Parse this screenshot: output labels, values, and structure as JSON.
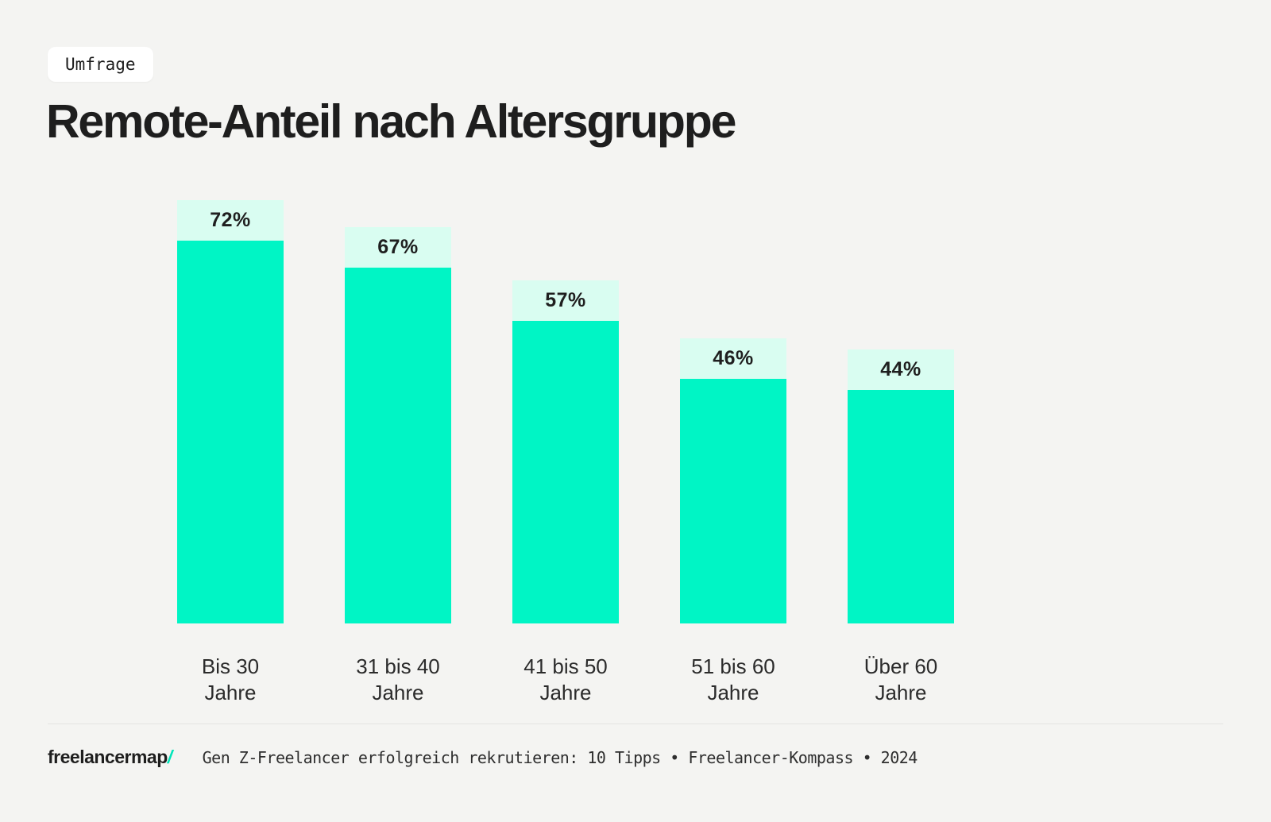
{
  "page": {
    "background": "#F4F4F2"
  },
  "colors": {
    "bar": "#00F5C5",
    "value_tag_bg": "#D9FDF1",
    "accent_slash": "#00E5BA",
    "title_text": "#1E1E1E"
  },
  "badge": {
    "label": "Umfrage"
  },
  "header": {
    "title": "Remote-Anteil nach Altersgruppe"
  },
  "chart_data": {
    "type": "bar",
    "title": "Remote-Anteil nach Altersgruppe",
    "categories": [
      "Bis 30 Jahre",
      "31 bis 40 Jahre",
      "41 bis 50 Jahre",
      "51 bis 60 Jahre",
      "Über 60 Jahre"
    ],
    "values": [
      72,
      67,
      57,
      46,
      44
    ],
    "value_labels": [
      "72%",
      "67%",
      "57%",
      "46%",
      "44%"
    ],
    "xlabel": "",
    "ylabel": "",
    "ylim": [
      0,
      100
    ],
    "grid": false,
    "legend": false,
    "bar_color": "#00F5C5",
    "value_tag_color": "#D9FDF1"
  },
  "footer": {
    "logo_text": "freelancermap",
    "logo_slash": "/",
    "source": "Gen Z-Freelancer erfolgreich rekrutieren: 10 Tipps • Freelancer-Kompass • 2024"
  }
}
